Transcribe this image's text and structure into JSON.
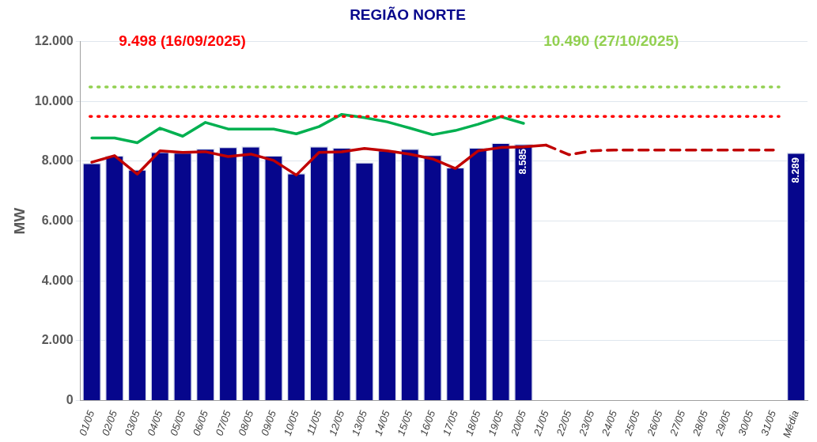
{
  "chart_data": {
    "type": "bar",
    "title": "REGIÃO NORTE",
    "ylabel": "MW",
    "categories": [
      "01/05",
      "02/05",
      "03/05",
      "04/05",
      "05/05",
      "06/05",
      "07/05",
      "08/05",
      "09/05",
      "10/05",
      "11/05",
      "12/05",
      "13/05",
      "14/05",
      "15/05",
      "16/05",
      "17/05",
      "18/05",
      "19/05",
      "20/05",
      "21/05",
      "22/05",
      "23/05",
      "24/05",
      "25/05",
      "26/05",
      "27/05",
      "28/05",
      "29/05",
      "30/05",
      "31/05",
      "Média"
    ],
    "series": [
      {
        "color": "#06068c",
        "values": [
          7950,
          8200,
          7730,
          8320,
          8300,
          8430,
          8480,
          8500,
          8200,
          7600,
          8500,
          8460,
          7970,
          8380,
          8420,
          8220,
          7800,
          8460,
          8620,
          8585,
          null,
          null,
          null,
          null,
          null,
          null,
          null,
          null,
          null,
          null,
          null,
          8289
        ],
        "value_labels": [
          null,
          null,
          null,
          null,
          null,
          null,
          null,
          null,
          null,
          null,
          null,
          null,
          null,
          null,
          null,
          null,
          null,
          null,
          null,
          "8.585",
          null,
          null,
          null,
          null,
          null,
          null,
          null,
          null,
          null,
          null,
          null,
          "8.289"
        ]
      },
      {
        "type": "line",
        "color": "#00b050",
        "line_style": "solid",
        "values": [
          8780,
          8780,
          8620,
          9110,
          8840,
          9300,
          9080,
          9080,
          9080,
          8920,
          9160,
          9570,
          9460,
          9320,
          9110,
          8890,
          9030,
          9240,
          9490,
          9270,
          null,
          null,
          null,
          null,
          null,
          null,
          null,
          null,
          null,
          null,
          null,
          null
        ]
      },
      {
        "type": "line",
        "color": "#c00000",
        "line_style": "solid",
        "values": [
          7970,
          8190,
          7570,
          8350,
          8300,
          8320,
          8160,
          8240,
          8030,
          7540,
          8300,
          8320,
          8430,
          8350,
          8240,
          8080,
          7760,
          8350,
          8460,
          8480,
          8540,
          null,
          null,
          null,
          null,
          null,
          null,
          null,
          null,
          null,
          null,
          null
        ]
      },
      {
        "type": "line",
        "color": "#c00000",
        "line_style": "dashed",
        "values": [
          null,
          null,
          null,
          null,
          null,
          null,
          null,
          null,
          null,
          null,
          null,
          null,
          null,
          null,
          null,
          null,
          null,
          null,
          null,
          null,
          8540,
          8220,
          8350,
          8380,
          8380,
          8380,
          8380,
          8380,
          8380,
          8380,
          8380,
          null
        ]
      }
    ],
    "ylim": [
      0,
      12000
    ],
    "yticks": [
      {
        "value": 0,
        "label": "0"
      },
      {
        "value": 2000,
        "label": "2.000"
      },
      {
        "value": 4000,
        "label": "4.000"
      },
      {
        "value": 6000,
        "label": "6.000"
      },
      {
        "value": 8000,
        "label": "8.000"
      },
      {
        "value": 10000,
        "label": "10.000"
      },
      {
        "value": 12000,
        "label": "12.000"
      }
    ],
    "grid": "y",
    "legend": false,
    "marker": "none",
    "ref_lines": [
      {
        "axis": "y",
        "value": 9498,
        "label": "9.498 (16/09/2025)",
        "color": "#ff0000",
        "line_style": "dotted"
      },
      {
        "axis": "y",
        "value": 10490,
        "label": "10.490 (27/10/2025)",
        "color": "#92d050",
        "line_style": "dotted"
      }
    ]
  }
}
